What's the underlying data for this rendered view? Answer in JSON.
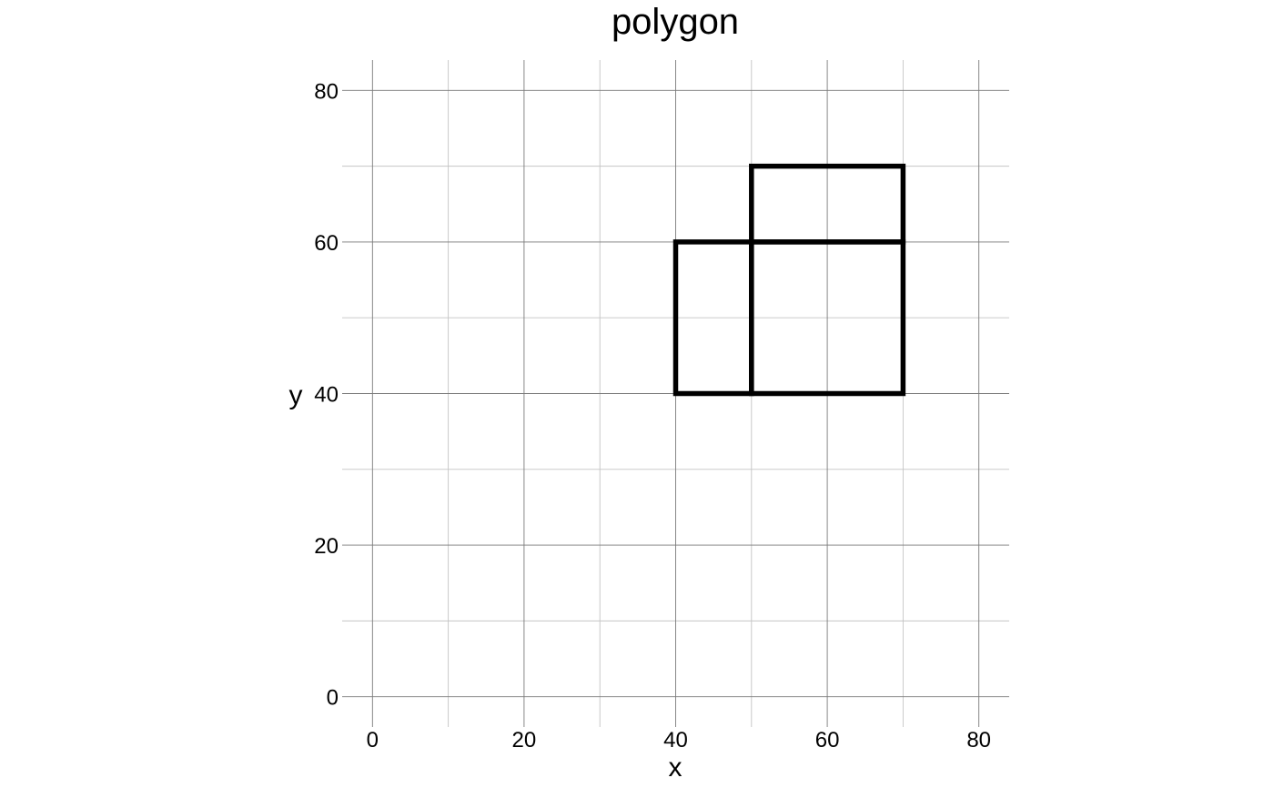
{
  "chart_data": {
    "type": "line",
    "title": "polygon",
    "xlabel": "x",
    "ylabel": "y",
    "xlim": [
      -4,
      84
    ],
    "ylim": [
      -4,
      84
    ],
    "x_ticks": [
      0,
      20,
      40,
      60,
      80
    ],
    "y_ticks": [
      0,
      20,
      40,
      60,
      80
    ],
    "x_tick_labels": [
      "0",
      "20",
      "40",
      "60",
      "80"
    ],
    "y_tick_labels": [
      "0",
      "20",
      "40",
      "60",
      "80"
    ],
    "x_minor_ticks": [
      10,
      30,
      50,
      70
    ],
    "y_minor_ticks": [
      10,
      30,
      50,
      70
    ],
    "grid": true,
    "legend": "none",
    "line_color": "#000000",
    "series": [
      {
        "points": [
          [
            40,
            40
          ],
          [
            50,
            40
          ],
          [
            50,
            60
          ],
          [
            40,
            60
          ],
          [
            40,
            40
          ]
        ]
      },
      {
        "points": [
          [
            50,
            40
          ],
          [
            70,
            40
          ],
          [
            70,
            60
          ],
          [
            50,
            60
          ],
          [
            50,
            40
          ]
        ]
      },
      {
        "points": [
          [
            50,
            60
          ],
          [
            70,
            60
          ],
          [
            70,
            70
          ],
          [
            50,
            70
          ],
          [
            50,
            60
          ]
        ]
      }
    ]
  }
}
